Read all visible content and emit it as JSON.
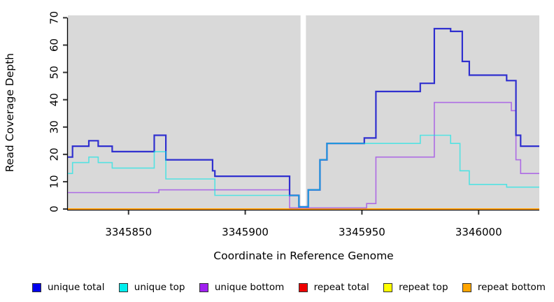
{
  "figure": {
    "plot_bg": "#d9d9d9",
    "axis_color": "#000000",
    "tick_color": "#333333"
  },
  "chart_data": {
    "type": "line",
    "subtype": "step-coverage",
    "title": "",
    "xlabel": "Coordinate in Reference Genome",
    "ylabel": "Read Coverage Depth",
    "xlim": [
      3345824,
      3346026
    ],
    "ylim": [
      0,
      70
    ],
    "x_ticks": [
      "3345850",
      "3345900",
      "3345950",
      "3346000"
    ],
    "x_tick_values": [
      3345850,
      3345900,
      3345950,
      3346000
    ],
    "y_ticks": [
      "0",
      "10",
      "20",
      "30",
      "40",
      "50",
      "60",
      "70"
    ],
    "y_tick_values": [
      0,
      10,
      20,
      30,
      40,
      50,
      60,
      70
    ],
    "grid": false,
    "legend_position": "bottom",
    "gap_bands": [
      [
        3345923.7,
        3345926.0
      ]
    ],
    "x_end": 3346026,
    "series": [
      {
        "id": "repeat-total",
        "name": "repeat total",
        "color": "#e02020",
        "width": 1.5,
        "opacity": 1,
        "steps": [
          [
            3345824,
            0
          ]
        ]
      },
      {
        "id": "repeat-top",
        "name": "repeat top",
        "color": "#ffe800",
        "width": 1.5,
        "opacity": 1,
        "steps": [
          [
            3345824,
            0
          ]
        ]
      },
      {
        "id": "repeat-bottom",
        "name": "repeat bottom",
        "color": "#ff9d00",
        "width": 2,
        "opacity": 1,
        "steps": [
          [
            3345824,
            0
          ]
        ]
      },
      {
        "id": "unique-bottom",
        "name": "unique bottom",
        "color": "#9b40e8",
        "width": 1.6,
        "opacity": 0.72,
        "steps": [
          [
            3345824,
            6
          ],
          [
            3345863,
            7
          ],
          [
            3345919,
            0.4
          ],
          [
            3345952,
            2
          ],
          [
            3345956,
            19
          ],
          [
            3345981,
            39
          ],
          [
            3346014,
            36
          ],
          [
            3346016,
            18
          ],
          [
            3346018,
            13
          ]
        ]
      },
      {
        "id": "unique-total",
        "name": "unique total",
        "color": "#3030cf",
        "width": 2.2,
        "opacity": 1,
        "steps": [
          [
            3345824,
            19
          ],
          [
            3345826,
            23
          ],
          [
            3345833,
            25
          ],
          [
            3345837,
            23
          ],
          [
            3345843,
            21
          ],
          [
            3345861,
            27
          ],
          [
            3345866,
            18
          ],
          [
            3345886,
            14
          ],
          [
            3345887,
            12
          ],
          [
            3345919,
            5
          ],
          [
            3345923,
            0.8
          ],
          [
            3345927,
            7
          ],
          [
            3345932,
            18
          ],
          [
            3345935,
            24
          ],
          [
            3345951,
            26
          ],
          [
            3345956,
            43
          ],
          [
            3345975,
            46
          ],
          [
            3345981,
            66
          ],
          [
            3345988,
            65
          ],
          [
            3345993,
            54
          ],
          [
            3345996,
            49
          ],
          [
            3346012,
            47
          ],
          [
            3346016,
            27
          ],
          [
            3346018,
            23
          ]
        ]
      },
      {
        "id": "unique-top",
        "name": "unique top",
        "color": "#00e6e6",
        "width": 1.6,
        "opacity": 0.62,
        "steps": [
          [
            3345824,
            13
          ],
          [
            3345826,
            17
          ],
          [
            3345833,
            19
          ],
          [
            3345837,
            17
          ],
          [
            3345843,
            15
          ],
          [
            3345861,
            21
          ],
          [
            3345866,
            11
          ],
          [
            3345887,
            5
          ],
          [
            3345923,
            0.8
          ],
          [
            3345927,
            7
          ],
          [
            3345932,
            18
          ],
          [
            3345935,
            24
          ],
          [
            3345975,
            27
          ],
          [
            3345988,
            24
          ],
          [
            3345992,
            14
          ],
          [
            3345996,
            9
          ],
          [
            3346012,
            8
          ]
        ]
      }
    ]
  },
  "legend": {
    "items": [
      {
        "label": "unique total",
        "color": "#0000ee"
      },
      {
        "label": "unique top",
        "color": "#00eeee"
      },
      {
        "label": "unique bottom",
        "color": "#a020f0"
      },
      {
        "label": "repeat total",
        "color": "#ee0000"
      },
      {
        "label": "repeat top",
        "color": "#ffff00"
      },
      {
        "label": "repeat bottom",
        "color": "#ffa500"
      }
    ]
  }
}
